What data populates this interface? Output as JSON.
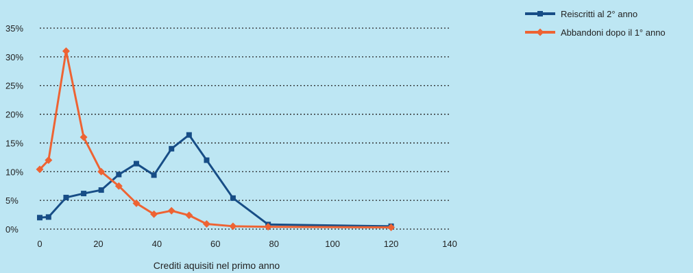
{
  "chart_data": {
    "type": "line",
    "title": "",
    "xlabel": "Crediti aquisiti nel primo anno",
    "ylabel": "",
    "xlim": [
      0,
      140
    ],
    "ylim": [
      0,
      35
    ],
    "x_ticks": [
      "0",
      "20",
      "40",
      "60",
      "80",
      "100",
      "120",
      "140"
    ],
    "y_ticks": [
      "0%",
      "5%",
      "10%",
      "15%",
      "20%",
      "25%",
      "30%",
      "35%"
    ],
    "grid": true,
    "legend_position": "top-right",
    "series": [
      {
        "name": "Reiscritti al 2° anno",
        "color": "#174d86",
        "marker": "square",
        "points": [
          {
            "x": 0,
            "y": 2.0
          },
          {
            "x": 3,
            "y": 2.1
          },
          {
            "x": 9,
            "y": 5.5
          },
          {
            "x": 15,
            "y": 6.2
          },
          {
            "x": 21,
            "y": 6.8
          },
          {
            "x": 27,
            "y": 9.5
          },
          {
            "x": 33,
            "y": 11.4
          },
          {
            "x": 39,
            "y": 9.4
          },
          {
            "x": 45,
            "y": 14.0
          },
          {
            "x": 51,
            "y": 16.4
          },
          {
            "x": 57,
            "y": 12.0
          },
          {
            "x": 66,
            "y": 5.4
          },
          {
            "x": 78,
            "y": 0.8
          },
          {
            "x": 120,
            "y": 0.5
          }
        ]
      },
      {
        "name": "Abbandoni dopo il 1° anno",
        "color": "#ee6333",
        "marker": "diamond",
        "points": [
          {
            "x": 0,
            "y": 10.4
          },
          {
            "x": 3,
            "y": 12.0
          },
          {
            "x": 9,
            "y": 31.0
          },
          {
            "x": 15,
            "y": 16.0
          },
          {
            "x": 21,
            "y": 10.0
          },
          {
            "x": 27,
            "y": 7.5
          },
          {
            "x": 33,
            "y": 4.5
          },
          {
            "x": 39,
            "y": 2.6
          },
          {
            "x": 45,
            "y": 3.2
          },
          {
            "x": 51,
            "y": 2.4
          },
          {
            "x": 57,
            "y": 0.9
          },
          {
            "x": 66,
            "y": 0.5
          },
          {
            "x": 78,
            "y": 0.4
          },
          {
            "x": 120,
            "y": 0.3
          }
        ]
      }
    ]
  }
}
